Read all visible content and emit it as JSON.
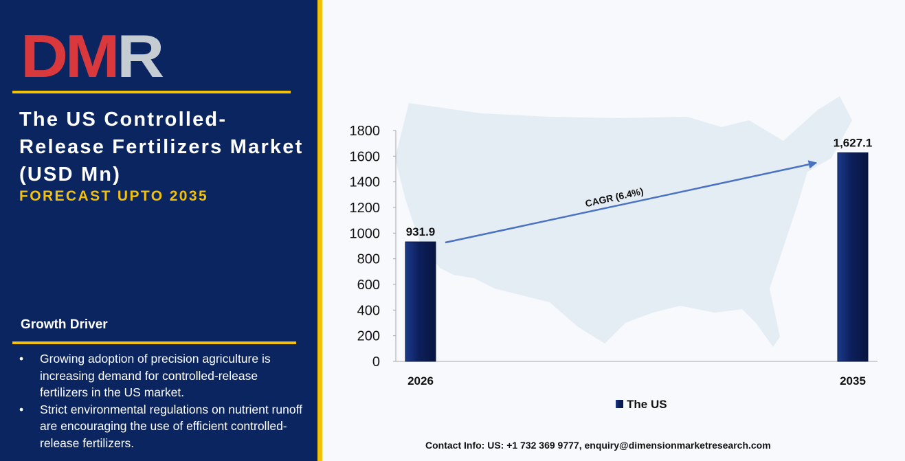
{
  "brand": {
    "logo_text": "DMR"
  },
  "headline": {
    "title": "The US Controlled-Release Fertilizers Market (USD Mn)",
    "subtitle": "FORECAST UPTO 2035"
  },
  "growth_driver": {
    "heading": "Growth Driver",
    "items": [
      "Growing adoption of precision agriculture is increasing demand for controlled-release fertilizers in the US market.",
      "Strict environmental regulations on nutrient runoff are encouraging the use of efficient controlled-release fertilizers."
    ]
  },
  "contact": "Contact Info: US: +1 732 369 9777, enquiry@dimensionmarketresearch.com",
  "colors": {
    "panel": "#0b2561",
    "accent": "#f3c10b",
    "bar": "#0d1f5c",
    "arrow": "#4a72c2",
    "logo_red": "#d9383d",
    "logo_grey": "#c5ccd2"
  },
  "chart_data": {
    "type": "bar",
    "categories": [
      "2026",
      "2035"
    ],
    "series": [
      {
        "name": "The US",
        "values": [
          931.9,
          1627.1
        ]
      }
    ],
    "data_labels": [
      "931.9",
      "1,627.1"
    ],
    "y_ticks": [
      0,
      200,
      400,
      600,
      800,
      1000,
      1200,
      1400,
      1600,
      1800
    ],
    "ylim": [
      0,
      1800
    ],
    "annotation": "CAGR (6.4%)",
    "legend": "bottom",
    "grid": false
  }
}
